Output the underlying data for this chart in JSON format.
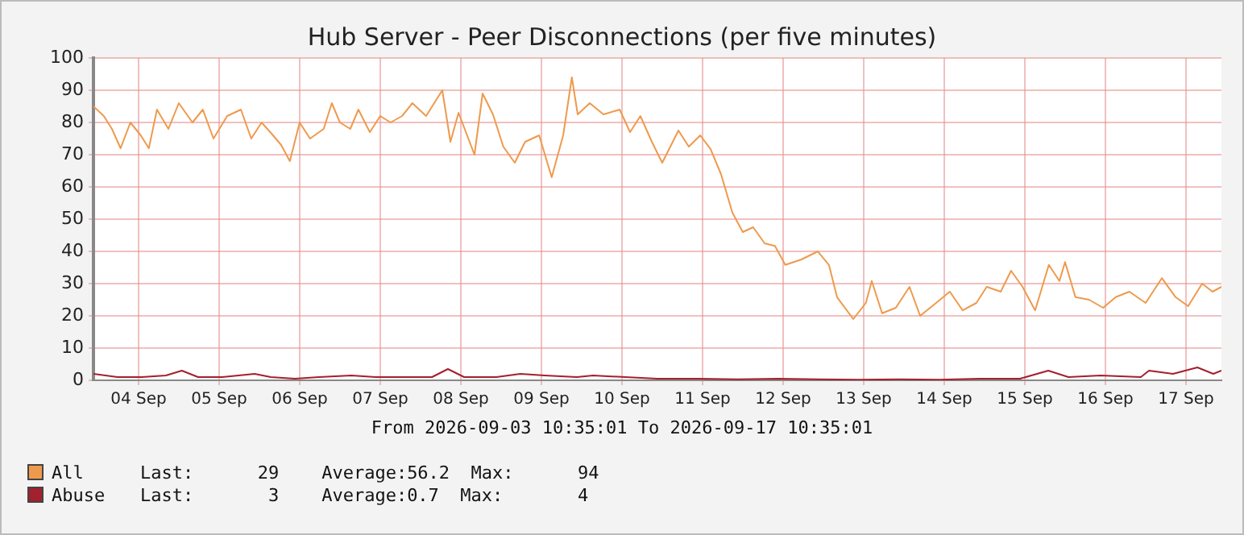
{
  "chart_data": {
    "type": "line",
    "title": "Hub Server - Peer Disconnections (per five minutes)",
    "xlim": [
      "2026-09-03T10:35",
      "2026-09-17T10:35"
    ],
    "xticks": [
      {
        "value": "2026-09-04",
        "label": "04 Sep"
      },
      {
        "value": "2026-09-05",
        "label": "05 Sep"
      },
      {
        "value": "2026-09-06",
        "label": "06 Sep"
      },
      {
        "value": "2026-09-07",
        "label": "07 Sep"
      },
      {
        "value": "2026-09-08",
        "label": "08 Sep"
      },
      {
        "value": "2026-09-09",
        "label": "09 Sep"
      },
      {
        "value": "2026-09-10",
        "label": "10 Sep"
      },
      {
        "value": "2026-09-11",
        "label": "11 Sep"
      },
      {
        "value": "2026-09-12",
        "label": "12 Sep"
      },
      {
        "value": "2026-09-13",
        "label": "13 Sep"
      },
      {
        "value": "2026-09-14",
        "label": "14 Sep"
      },
      {
        "value": "2026-09-15",
        "label": "15 Sep"
      },
      {
        "value": "2026-09-16",
        "label": "16 Sep"
      },
      {
        "value": "2026-09-17",
        "label": "17 Sep"
      }
    ],
    "ylim": [
      0,
      100
    ],
    "yticks": [
      0,
      10,
      20,
      30,
      40,
      50,
      60,
      70,
      80,
      90,
      100
    ],
    "grid": true,
    "legend": "bottom left",
    "annotations": [
      "From 2026-09-03 10:35:01 To 2026-09-17 10:35:01",
      "Last:      29    Average:56.2  Max:      94",
      "Last:       3    Average:0.7  Max:       4"
    ],
    "series": [
      {
        "name": "All",
        "color": "#ee9a4d",
        "x": [
          "2026-09-03T10:35",
          "2026-09-03T13:40",
          "2026-09-03T16:05",
          "2026-09-03T18:40",
          "2026-09-03T21:35",
          "2026-09-04T00:40",
          "2026-09-04T03:05",
          "2026-09-04T05:30",
          "2026-09-04T08:55",
          "2026-09-04T12:00",
          "2026-09-04T16:05",
          "2026-09-04T19:10",
          "2026-09-04T22:20",
          "2026-09-05T02:25",
          "2026-09-05T06:30",
          "2026-09-05T09:35",
          "2026-09-05T12:40",
          "2026-09-05T16:05",
          "2026-09-05T18:30",
          "2026-09-05T21:05",
          "2026-09-06T00:00",
          "2026-09-06T03:05",
          "2026-09-06T07:10",
          "2026-09-06T09:35",
          "2026-09-06T12:00",
          "2026-09-06T15:05",
          "2026-09-06T17:30",
          "2026-09-06T20:55",
          "2026-09-07T00:00",
          "2026-09-07T03:05",
          "2026-09-07T06:30",
          "2026-09-07T09:35",
          "2026-09-07T13:40",
          "2026-09-07T16:05",
          "2026-09-07T18:30",
          "2026-09-07T20:55",
          "2026-09-07T23:20",
          "2026-09-08T04:05",
          "2026-09-08T06:30",
          "2026-09-08T09:35",
          "2026-09-08T12:40",
          "2026-09-08T16:05",
          "2026-09-08T19:10",
          "2026-09-08T23:20",
          "2026-09-09T03:05",
          "2026-09-09T06:30",
          "2026-09-09T09:05",
          "2026-09-09T10:50",
          "2026-09-09T14:25",
          "2026-09-09T18:30",
          "2026-09-09T23:20",
          "2026-09-10T02:25",
          "2026-09-10T05:30",
          "2026-09-10T08:55",
          "2026-09-10T12:00",
          "2026-09-10T16:50",
          "2026-09-10T19:55",
          "2026-09-10T23:20",
          "2026-09-11T02:25",
          "2026-09-11T05:30",
          "2026-09-11T08:55",
          "2026-09-11T12:00",
          "2026-09-11T15:05",
          "2026-09-11T18:30",
          "2026-09-11T21:35",
          "2026-09-12T00:40",
          "2026-09-12T05:30",
          "2026-09-12T10:20",
          "2026-09-12T13:40",
          "2026-09-12T16:05",
          "2026-09-12T20:55",
          "2026-09-13T00:40",
          "2026-09-13T02:25",
          "2026-09-13T05:30",
          "2026-09-13T09:35",
          "2026-09-13T13:40",
          "2026-09-13T16:50",
          "2026-09-13T21:35",
          "2026-09-14T01:40",
          "2026-09-14T05:30",
          "2026-09-14T09:35",
          "2026-09-14T12:40",
          "2026-09-14T16:50",
          "2026-09-14T19:55",
          "2026-09-14T23:20",
          "2026-09-15T03:05",
          "2026-09-15T07:10",
          "2026-09-15T10:20",
          "2026-09-15T12:00",
          "2026-09-15T15:05",
          "2026-09-15T19:10",
          "2026-09-15T23:20",
          "2026-09-16T03:05",
          "2026-09-16T07:10",
          "2026-09-16T12:00",
          "2026-09-16T16:50",
          "2026-09-16T20:55",
          "2026-09-17T00:40",
          "2026-09-17T04:50",
          "2026-09-17T07:55",
          "2026-09-17T10:35"
        ],
        "values": [
          85,
          82,
          78,
          72,
          80,
          76,
          72,
          84,
          78,
          86,
          80,
          84,
          75,
          82,
          84,
          75,
          80,
          76,
          73,
          68,
          80,
          75,
          78,
          86,
          80,
          78,
          84,
          77,
          82,
          80,
          82,
          86,
          82,
          86,
          90,
          74,
          83,
          70,
          89,
          82.5,
          72.5,
          67.5,
          74,
          76,
          63,
          76,
          94,
          82.5,
          86,
          82.5,
          84,
          77,
          82,
          74,
          67.5,
          77.5,
          72.5,
          76,
          71.7,
          64,
          52,
          46,
          47.5,
          42.5,
          41.7,
          35.8,
          37.5,
          40,
          35.8,
          25.8,
          19,
          24,
          30.8,
          20.8,
          22.5,
          29,
          20,
          24,
          27.5,
          21.7,
          24,
          29,
          27.5,
          34,
          29,
          21.7,
          35.8,
          30.8,
          36.7,
          25.8,
          25,
          22.5,
          25.8,
          27.5,
          24,
          31.7,
          25.8,
          23,
          30,
          27.5,
          29
        ]
      },
      {
        "name": "Abuse",
        "color": "#a3202e",
        "x": [
          "2026-09-03T10:35",
          "2026-09-03T17:45",
          "2026-09-04T01:00",
          "2026-09-04T08:10",
          "2026-09-04T12:55",
          "2026-09-04T17:45",
          "2026-09-05T01:00",
          "2026-09-05T10:35",
          "2026-09-05T15:25",
          "2026-09-05T22:35",
          "2026-09-06T05:45",
          "2026-09-06T15:25",
          "2026-09-06T22:35",
          "2026-09-07T08:10",
          "2026-09-07T15:25",
          "2026-09-07T20:10",
          "2026-09-08T01:00",
          "2026-09-08T10:35",
          "2026-09-08T17:45",
          "2026-09-09T01:00",
          "2026-09-09T10:35",
          "2026-09-09T15:25",
          "2026-09-10T01:00",
          "2026-09-10T10:35",
          "2026-09-10T22:35",
          "2026-09-11T10:35",
          "2026-09-11T22:35",
          "2026-09-12T10:35",
          "2026-09-12T22:35",
          "2026-09-13T10:35",
          "2026-09-13T22:35",
          "2026-09-14T10:35",
          "2026-09-14T22:35",
          "2026-09-15T07:00",
          "2026-09-15T13:00",
          "2026-09-15T22:35",
          "2026-09-16T10:35",
          "2026-09-16T13:00",
          "2026-09-16T20:10",
          "2026-09-17T03:25",
          "2026-09-17T08:10",
          "2026-09-17T10:35"
        ],
        "values": [
          2,
          1,
          1,
          1.5,
          3,
          1,
          1,
          2,
          1,
          0.5,
          1,
          1.5,
          1,
          1,
          1,
          3.5,
          1,
          1,
          2,
          1.5,
          1,
          1.5,
          1,
          0.5,
          0.5,
          0.3,
          0.5,
          0.3,
          0.2,
          0.3,
          0.2,
          0.5,
          0.5,
          3,
          1,
          1.5,
          1,
          3,
          2,
          4,
          2,
          3
        ]
      }
    ]
  }
}
